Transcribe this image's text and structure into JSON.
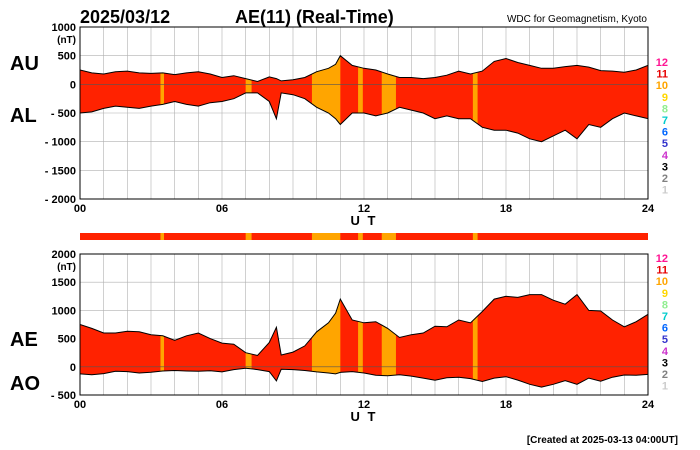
{
  "header": {
    "date": "2025/03/12",
    "title": "AE(11) (Real-Time)",
    "source": "WDC for Geomagnetism, Kyoto"
  },
  "footer": {
    "created": "[Created at 2025-03-13 04:00UT]"
  },
  "colors": {
    "fill_main": "#ff2200",
    "fill_highlight": "#ffa500",
    "station_count_colors": {
      "12": "#ff1493",
      "11": "#e60000",
      "10": "#ffa500",
      "9": "#ffd700",
      "8": "#90ee90",
      "7": "#00cccc",
      "6": "#0066ff",
      "5": "#3333cc",
      "4": "#cc33cc",
      "3": "#000000",
      "2": "#808080",
      "1": "#cccccc"
    }
  },
  "station_count_legend": [
    "12",
    "11",
    "10",
    "9",
    "8",
    "7",
    "6",
    "5",
    "4",
    "3",
    "2",
    "1"
  ],
  "station_bar": {
    "label": "",
    "highlight_intervals_ut": [
      [
        3.4,
        3.55
      ],
      [
        7.0,
        7.25
      ],
      [
        9.8,
        11.0
      ],
      [
        11.75,
        11.95
      ],
      [
        12.75,
        13.35
      ],
      [
        16.6,
        16.8
      ]
    ]
  },
  "chart_data": [
    {
      "type": "area",
      "name": "AU/AL",
      "side_labels": [
        "AU",
        "AL"
      ],
      "xlabel": "U T",
      "ylabel": "(nT)",
      "xlim": [
        0,
        24
      ],
      "ylim": [
        -2000,
        1000
      ],
      "xticks": [
        0,
        6,
        12,
        18,
        24
      ],
      "xtick_labels": [
        "00",
        "06",
        "12",
        "18",
        "24"
      ],
      "yticks": [
        1000,
        500,
        0,
        -500,
        -1000,
        -1500,
        -2000
      ],
      "ytick_labels": [
        "1000",
        "500",
        "0",
        "- 500",
        "- 1000",
        "- 1500",
        "- 2000"
      ],
      "grid": true,
      "x": [
        0,
        0.5,
        1,
        1.5,
        2,
        2.5,
        3,
        3.5,
        4,
        4.5,
        5,
        5.5,
        6,
        6.5,
        7,
        7.5,
        8,
        8.3,
        8.5,
        9,
        9.5,
        10,
        10.5,
        10.8,
        11,
        11.5,
        12,
        12.5,
        13,
        13.5,
        14,
        14.5,
        15,
        15.5,
        16,
        16.5,
        17,
        17.5,
        18,
        18.5,
        19,
        19.5,
        20,
        20.5,
        21,
        21.5,
        22,
        22.5,
        23,
        23.5,
        24
      ],
      "series": [
        {
          "name": "AU",
          "values": [
            250,
            200,
            180,
            220,
            230,
            200,
            190,
            200,
            170,
            200,
            220,
            180,
            120,
            150,
            100,
            50,
            130,
            100,
            60,
            80,
            120,
            220,
            280,
            350,
            500,
            330,
            280,
            250,
            180,
            120,
            120,
            100,
            120,
            160,
            230,
            180,
            230,
            400,
            450,
            380,
            330,
            280,
            280,
            310,
            330,
            300,
            240,
            230,
            210,
            250,
            330
          ]
        },
        {
          "name": "AL",
          "values": [
            -500,
            -480,
            -420,
            -380,
            -400,
            -420,
            -380,
            -350,
            -300,
            -350,
            -380,
            -320,
            -300,
            -250,
            -150,
            -150,
            -300,
            -600,
            -150,
            -180,
            -250,
            -400,
            -500,
            -600,
            -700,
            -500,
            -500,
            -550,
            -500,
            -400,
            -450,
            -500,
            -600,
            -550,
            -600,
            -600,
            -750,
            -800,
            -800,
            -850,
            -950,
            -1000,
            -900,
            -800,
            -950,
            -700,
            -750,
            -600,
            -500,
            -550,
            -600
          ]
        }
      ]
    },
    {
      "type": "area",
      "name": "AE/AO",
      "side_labels": [
        "AE",
        "AO"
      ],
      "xlabel": "U T",
      "ylabel": "(nT)",
      "xlim": [
        0,
        24
      ],
      "ylim": [
        -500,
        2000
      ],
      "xticks": [
        0,
        6,
        12,
        18,
        24
      ],
      "xtick_labels": [
        "00",
        "06",
        "12",
        "18",
        "24"
      ],
      "yticks": [
        2000,
        1500,
        1000,
        500,
        0,
        -500
      ],
      "ytick_labels": [
        "2000",
        "1500",
        "1000",
        "500",
        "0",
        "- 500"
      ],
      "grid": true,
      "x": [
        0,
        0.5,
        1,
        1.5,
        2,
        2.5,
        3,
        3.5,
        4,
        4.5,
        5,
        5.5,
        6,
        6.5,
        7,
        7.5,
        8,
        8.3,
        8.5,
        9,
        9.5,
        10,
        10.5,
        10.8,
        11,
        11.5,
        12,
        12.5,
        13,
        13.5,
        14,
        14.5,
        15,
        15.5,
        16,
        16.5,
        17,
        17.5,
        18,
        18.5,
        19,
        19.5,
        20,
        20.5,
        21,
        21.5,
        22,
        22.5,
        23,
        23.5,
        24
      ],
      "series": [
        {
          "name": "AE",
          "values": [
            750,
            680,
            600,
            600,
            630,
            620,
            570,
            550,
            470,
            550,
            600,
            500,
            420,
            400,
            250,
            200,
            430,
            700,
            210,
            260,
            370,
            620,
            780,
            950,
            1200,
            830,
            780,
            800,
            680,
            520,
            570,
            600,
            720,
            710,
            830,
            780,
            980,
            1200,
            1250,
            1230,
            1280,
            1280,
            1180,
            1110,
            1280,
            1000,
            990,
            830,
            710,
            800,
            930
          ]
        },
        {
          "name": "AO",
          "values": [
            -125,
            -140,
            -120,
            -80,
            -85,
            -110,
            -95,
            -75,
            -65,
            -75,
            -80,
            -70,
            -90,
            -50,
            -25,
            -50,
            -85,
            -250,
            -45,
            -50,
            -65,
            -90,
            -110,
            -125,
            -100,
            -85,
            -110,
            -150,
            -160,
            -140,
            -165,
            -200,
            -240,
            -195,
            -185,
            -210,
            -260,
            -200,
            -175,
            -235,
            -310,
            -360,
            -310,
            -245,
            -310,
            -200,
            -255,
            -185,
            -145,
            -150,
            -135
          ]
        }
      ]
    }
  ]
}
